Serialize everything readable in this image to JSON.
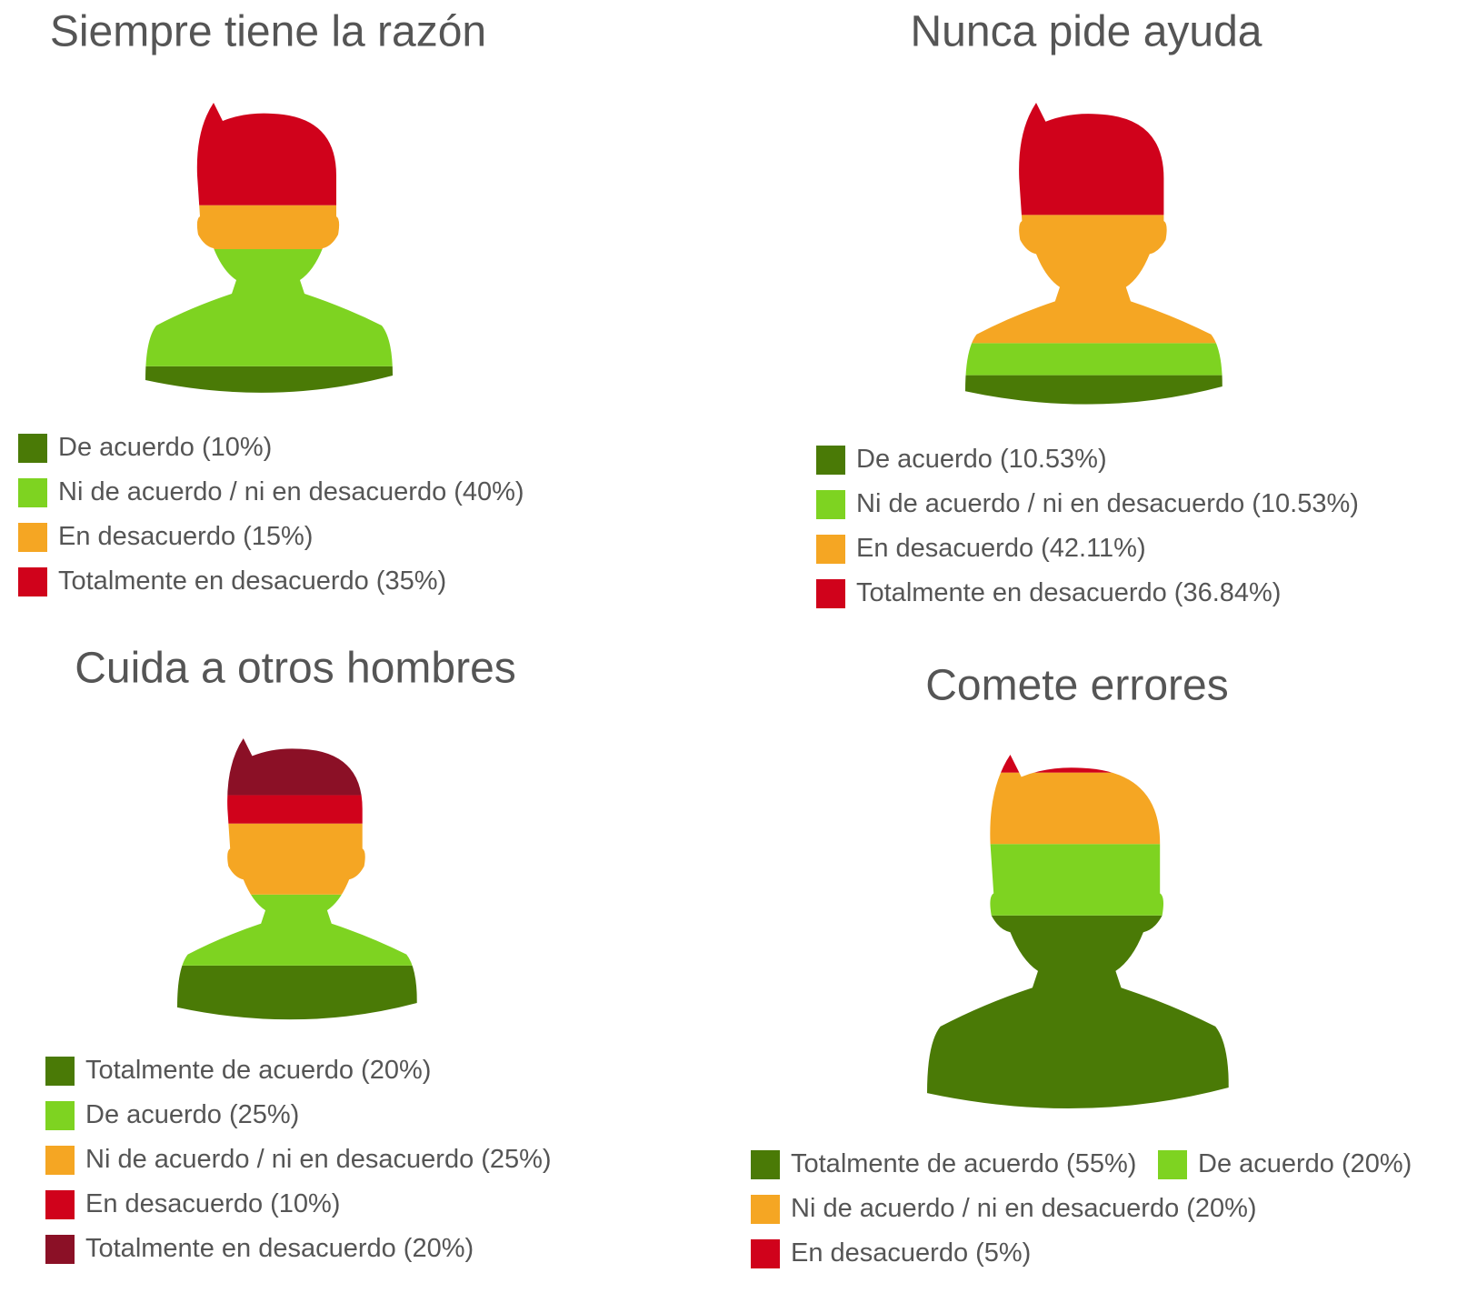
{
  "chart_data": [
    {
      "type": "pictogram",
      "title": "Siempre tiene la razón",
      "categories": [
        "De acuerdo",
        "Ni de acuerdo / ni en desacuerdo",
        "En desacuerdo",
        "Totalmente en desacuerdo"
      ],
      "values": [
        10,
        40,
        15,
        35
      ],
      "value_labels": [
        "(10%)",
        "(40%)",
        "(15%)",
        "(35%)"
      ],
      "colors": [
        "#4a7a06",
        "#7ed321",
        "#f5a623",
        "#d0021b"
      ]
    },
    {
      "type": "pictogram",
      "title": "Nunca pide ayuda",
      "categories": [
        "De acuerdo",
        "Ni de acuerdo / ni en desacuerdo",
        "En desacuerdo",
        "Totalmente en desacuerdo"
      ],
      "values": [
        10.53,
        10.53,
        42.11,
        36.84
      ],
      "value_labels": [
        "(10.53%)",
        "(10.53%)",
        "(42.11%)",
        "(36.84%)"
      ],
      "colors": [
        "#4a7a06",
        "#7ed321",
        "#f5a623",
        "#d0021b"
      ]
    },
    {
      "type": "pictogram",
      "title": "Cuida a otros hombres",
      "categories": [
        "Totalmente de acuerdo",
        "De acuerdo",
        "Ni de acuerdo / ni en desacuerdo",
        "En desacuerdo",
        "Totalmente en desacuerdo"
      ],
      "values": [
        20,
        25,
        25,
        10,
        20
      ],
      "value_labels": [
        "(20%)",
        "(25%)",
        "(25%)",
        "(10%)",
        "(20%)"
      ],
      "colors": [
        "#4a7a06",
        "#7ed321",
        "#f5a623",
        "#d0021b",
        "#8b1026"
      ]
    },
    {
      "type": "pictogram",
      "title": "Comete errores",
      "categories": [
        "Totalmente de acuerdo",
        "De acuerdo",
        "Ni de acuerdo / ni en desacuerdo",
        "En desacuerdo"
      ],
      "values": [
        55,
        20,
        20,
        5
      ],
      "value_labels": [
        "(55%)",
        "(20%)",
        "(20%)",
        "(5%)"
      ],
      "colors": [
        "#4a7a06",
        "#7ed321",
        "#f5a623",
        "#d0021b"
      ]
    }
  ]
}
